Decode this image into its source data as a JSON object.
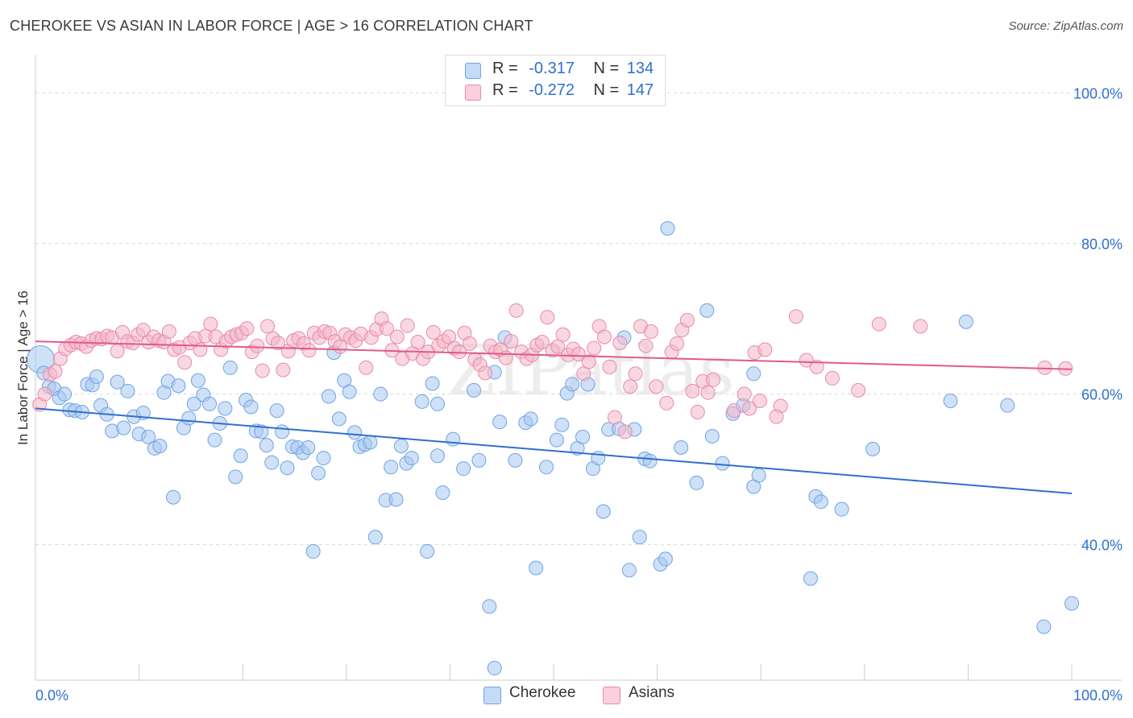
{
  "title": "CHEROKEE VS ASIAN IN LABOR FORCE | AGE > 16 CORRELATION CHART",
  "source": "Source: ZipAtlas.com",
  "legend": {
    "rows": [
      {
        "r_label": "R =",
        "r_value": "-0.317",
        "n_label": "N =",
        "n_value": "134",
        "color": "#a8c8f0"
      },
      {
        "r_label": "R =",
        "r_value": "-0.272",
        "n_label": "N =",
        "n_value": "147",
        "color": "#f4b6c8"
      }
    ]
  },
  "bottom_legend": [
    {
      "label": "Cherokee",
      "color": "#a8c8f0"
    },
    {
      "label": "Asians",
      "color": "#f4b6c8"
    }
  ],
  "watermark": "ZIPatlas",
  "chart_data": {
    "type": "scatter",
    "ylabel": "In Labor Force | Age > 16",
    "xlim": [
      0,
      100
    ],
    "ylim": [
      22,
      104
    ],
    "x_tick_labels": [
      {
        "value": 0,
        "label": "0.0%"
      },
      {
        "value": 100,
        "label": "100.0%"
      }
    ],
    "y_tick_labels": [
      {
        "value": 100,
        "label": "100.0%"
      },
      {
        "value": 80,
        "label": "80.0%"
      },
      {
        "value": 60,
        "label": "60.0%"
      },
      {
        "value": 40,
        "label": "40.0%"
      }
    ],
    "grid": "horizontal-dashed",
    "series": [
      {
        "name": "Cherokee",
        "color": "#6fa3e6",
        "fill": "#a8c8f0",
        "trend": {
          "x": [
            0,
            100
          ],
          "y": [
            58.1,
            46.8
          ],
          "color": "#2f6fd0"
        },
        "points": [
          [
            0.5,
            64.6
          ],
          [
            0.8,
            62.8
          ],
          [
            1.3,
            61.0
          ],
          [
            1.8,
            60.7
          ],
          [
            2.3,
            59.5
          ],
          [
            2.8,
            60.0
          ],
          [
            3.3,
            57.9
          ],
          [
            3.8,
            57.8
          ],
          [
            4.5,
            57.6
          ],
          [
            5.0,
            61.3
          ],
          [
            5.5,
            61.2
          ],
          [
            5.9,
            62.3
          ],
          [
            6.3,
            58.5
          ],
          [
            6.9,
            57.3
          ],
          [
            7.4,
            55.1
          ],
          [
            7.9,
            61.6
          ],
          [
            8.5,
            55.5
          ],
          [
            8.9,
            60.4
          ],
          [
            9.5,
            57.0
          ],
          [
            10.0,
            54.7
          ],
          [
            10.4,
            57.5
          ],
          [
            10.9,
            54.3
          ],
          [
            11.5,
            52.8
          ],
          [
            12.0,
            53.1
          ],
          [
            12.4,
            60.2
          ],
          [
            12.8,
            61.7
          ],
          [
            13.3,
            46.3
          ],
          [
            13.8,
            61.1
          ],
          [
            14.3,
            55.5
          ],
          [
            14.8,
            56.8
          ],
          [
            15.3,
            58.7
          ],
          [
            15.7,
            61.8
          ],
          [
            16.2,
            59.9
          ],
          [
            16.8,
            58.7
          ],
          [
            17.3,
            53.9
          ],
          [
            17.8,
            56.1
          ],
          [
            18.3,
            58.1
          ],
          [
            18.8,
            63.5
          ],
          [
            19.3,
            49.0
          ],
          [
            19.8,
            51.8
          ],
          [
            20.3,
            59.2
          ],
          [
            20.8,
            58.3
          ],
          [
            21.3,
            55.1
          ],
          [
            21.8,
            55.0
          ],
          [
            22.3,
            53.2
          ],
          [
            22.8,
            50.9
          ],
          [
            23.3,
            57.8
          ],
          [
            23.8,
            55.0
          ],
          [
            24.3,
            50.2
          ],
          [
            24.8,
            53.0
          ],
          [
            25.3,
            52.9
          ],
          [
            25.8,
            52.2
          ],
          [
            26.3,
            52.9
          ],
          [
            26.8,
            39.1
          ],
          [
            27.3,
            49.5
          ],
          [
            27.8,
            51.5
          ],
          [
            28.3,
            59.7
          ],
          [
            28.8,
            65.5
          ],
          [
            29.3,
            56.7
          ],
          [
            29.8,
            61.8
          ],
          [
            30.3,
            60.3
          ],
          [
            30.8,
            54.9
          ],
          [
            31.3,
            53.0
          ],
          [
            31.8,
            53.3
          ],
          [
            32.3,
            53.6
          ],
          [
            32.8,
            41.0
          ],
          [
            33.3,
            60.0
          ],
          [
            33.8,
            45.9
          ],
          [
            34.3,
            50.3
          ],
          [
            34.8,
            46.0
          ],
          [
            35.3,
            53.1
          ],
          [
            35.8,
            50.8
          ],
          [
            36.3,
            51.5
          ],
          [
            37.3,
            59.0
          ],
          [
            37.8,
            39.1
          ],
          [
            38.3,
            61.4
          ],
          [
            38.8,
            58.7
          ],
          [
            39.3,
            46.9
          ],
          [
            40.3,
            54.0
          ],
          [
            41.3,
            50.1
          ],
          [
            42.3,
            60.5
          ],
          [
            42.8,
            51.2
          ],
          [
            43.8,
            31.8
          ],
          [
            44.3,
            62.9
          ],
          [
            44.8,
            56.3
          ],
          [
            45.3,
            67.5
          ],
          [
            46.3,
            51.2
          ],
          [
            47.3,
            56.2
          ],
          [
            47.8,
            56.7
          ],
          [
            48.3,
            36.9
          ],
          [
            49.3,
            50.3
          ],
          [
            50.3,
            53.9
          ],
          [
            50.8,
            55.9
          ],
          [
            51.3,
            60.1
          ],
          [
            51.8,
            61.3
          ],
          [
            52.3,
            52.8
          ],
          [
            52.8,
            54.3
          ],
          [
            53.3,
            61.3
          ],
          [
            53.8,
            50.1
          ],
          [
            54.3,
            51.5
          ],
          [
            54.8,
            44.4
          ],
          [
            55.3,
            55.3
          ],
          [
            56.3,
            55.4
          ],
          [
            56.8,
            67.5
          ],
          [
            57.3,
            36.6
          ],
          [
            57.8,
            55.3
          ],
          [
            58.3,
            41.0
          ],
          [
            58.8,
            51.4
          ],
          [
            59.3,
            51.1
          ],
          [
            60.3,
            37.4
          ],
          [
            60.8,
            38.1
          ],
          [
            61.0,
            82.0
          ],
          [
            62.3,
            52.9
          ],
          [
            63.8,
            48.2
          ],
          [
            64.8,
            71.1
          ],
          [
            65.3,
            54.4
          ],
          [
            66.3,
            50.8
          ],
          [
            67.3,
            57.4
          ],
          [
            68.3,
            58.5
          ],
          [
            69.3,
            62.7
          ],
          [
            69.3,
            47.7
          ],
          [
            69.8,
            49.2
          ],
          [
            74.8,
            35.5
          ],
          [
            75.3,
            46.4
          ],
          [
            75.8,
            45.7
          ],
          [
            77.8,
            44.7
          ],
          [
            80.8,
            52.7
          ],
          [
            88.3,
            59.1
          ],
          [
            89.8,
            69.6
          ],
          [
            93.8,
            58.5
          ],
          [
            97.3,
            29.1
          ],
          [
            100,
            32.2
          ],
          [
            44.3,
            23.6
          ],
          [
            38.8,
            51.8
          ]
        ]
      },
      {
        "name": "Asians",
        "color": "#e98aa8",
        "fill": "#f4b6c8",
        "trend": {
          "x": [
            0,
            100
          ],
          "y": [
            67.0,
            63.3
          ],
          "color": "#e05a8a"
        },
        "points": [
          [
            0.4,
            58.6
          ],
          [
            0.9,
            60.0
          ],
          [
            1.4,
            62.6
          ],
          [
            1.9,
            63.0
          ],
          [
            2.4,
            64.7
          ],
          [
            2.9,
            66.0
          ],
          [
            3.4,
            66.5
          ],
          [
            3.9,
            66.9
          ],
          [
            4.4,
            66.7
          ],
          [
            4.9,
            66.3
          ],
          [
            5.4,
            67.1
          ],
          [
            5.9,
            67.4
          ],
          [
            6.4,
            67.3
          ],
          [
            6.9,
            67.7
          ],
          [
            7.4,
            67.5
          ],
          [
            7.9,
            65.7
          ],
          [
            8.4,
            68.2
          ],
          [
            8.9,
            67.0
          ],
          [
            9.4,
            66.8
          ],
          [
            9.9,
            67.9
          ],
          [
            10.4,
            68.5
          ],
          [
            10.9,
            66.9
          ],
          [
            11.4,
            67.6
          ],
          [
            11.9,
            67.1
          ],
          [
            12.4,
            66.9
          ],
          [
            12.9,
            68.3
          ],
          [
            13.4,
            65.9
          ],
          [
            13.9,
            66.2
          ],
          [
            14.4,
            64.2
          ],
          [
            14.9,
            66.8
          ],
          [
            15.4,
            67.4
          ],
          [
            15.9,
            65.9
          ],
          [
            16.4,
            67.7
          ],
          [
            16.9,
            69.3
          ],
          [
            17.4,
            67.6
          ],
          [
            17.9,
            65.9
          ],
          [
            18.4,
            67.0
          ],
          [
            18.9,
            67.6
          ],
          [
            19.4,
            67.9
          ],
          [
            19.9,
            68.1
          ],
          [
            20.4,
            68.7
          ],
          [
            20.9,
            65.6
          ],
          [
            21.4,
            66.4
          ],
          [
            21.9,
            63.1
          ],
          [
            22.4,
            69.0
          ],
          [
            22.9,
            67.4
          ],
          [
            23.4,
            66.8
          ],
          [
            23.9,
            63.2
          ],
          [
            24.4,
            65.7
          ],
          [
            24.9,
            67.1
          ],
          [
            25.4,
            67.4
          ],
          [
            25.9,
            66.7
          ],
          [
            26.4,
            65.8
          ],
          [
            26.9,
            68.1
          ],
          [
            27.4,
            67.5
          ],
          [
            27.9,
            68.3
          ],
          [
            28.4,
            68.1
          ],
          [
            28.9,
            67.0
          ],
          [
            29.4,
            66.3
          ],
          [
            29.9,
            67.9
          ],
          [
            30.4,
            67.5
          ],
          [
            30.9,
            67.1
          ],
          [
            31.4,
            68.0
          ],
          [
            31.9,
            63.5
          ],
          [
            32.4,
            67.5
          ],
          [
            32.9,
            68.6
          ],
          [
            33.4,
            70.0
          ],
          [
            33.9,
            68.7
          ],
          [
            34.4,
            65.8
          ],
          [
            34.9,
            67.6
          ],
          [
            35.4,
            64.7
          ],
          [
            35.9,
            69.1
          ],
          [
            36.4,
            65.4
          ],
          [
            36.9,
            66.9
          ],
          [
            37.4,
            64.7
          ],
          [
            37.9,
            65.6
          ],
          [
            38.4,
            68.2
          ],
          [
            38.9,
            66.4
          ],
          [
            39.4,
            67.0
          ],
          [
            39.9,
            67.6
          ],
          [
            40.4,
            66.1
          ],
          [
            40.9,
            65.6
          ],
          [
            41.4,
            68.1
          ],
          [
            41.9,
            66.7
          ],
          [
            42.4,
            64.6
          ],
          [
            42.9,
            63.9
          ],
          [
            43.4,
            62.8
          ],
          [
            43.9,
            66.4
          ],
          [
            44.4,
            65.6
          ],
          [
            44.9,
            65.9
          ],
          [
            45.4,
            64.8
          ],
          [
            45.9,
            67.0
          ],
          [
            46.4,
            71.1
          ],
          [
            46.9,
            65.6
          ],
          [
            47.4,
            64.7
          ],
          [
            47.9,
            65.2
          ],
          [
            48.4,
            66.5
          ],
          [
            48.9,
            66.9
          ],
          [
            49.4,
            70.2
          ],
          [
            49.9,
            65.8
          ],
          [
            50.4,
            66.3
          ],
          [
            50.9,
            67.9
          ],
          [
            51.4,
            65.2
          ],
          [
            51.9,
            66.0
          ],
          [
            52.4,
            65.3
          ],
          [
            52.9,
            62.7
          ],
          [
            53.4,
            64.3
          ],
          [
            53.9,
            66.1
          ],
          [
            54.4,
            69.0
          ],
          [
            54.9,
            67.6
          ],
          [
            55.4,
            63.6
          ],
          [
            55.9,
            56.9
          ],
          [
            56.4,
            66.8
          ],
          [
            56.9,
            55.0
          ],
          [
            57.4,
            61.0
          ],
          [
            57.9,
            62.7
          ],
          [
            58.4,
            69.0
          ],
          [
            58.9,
            66.4
          ],
          [
            59.4,
            68.3
          ],
          [
            59.9,
            61.0
          ],
          [
            60.9,
            58.8
          ],
          [
            61.4,
            65.6
          ],
          [
            61.9,
            66.7
          ],
          [
            62.4,
            68.5
          ],
          [
            62.9,
            69.8
          ],
          [
            63.4,
            60.4
          ],
          [
            63.9,
            57.6
          ],
          [
            64.4,
            61.7
          ],
          [
            64.9,
            60.2
          ],
          [
            65.4,
            61.9
          ],
          [
            67.4,
            57.8
          ],
          [
            68.4,
            60.0
          ],
          [
            68.9,
            58.1
          ],
          [
            69.4,
            65.5
          ],
          [
            69.9,
            59.1
          ],
          [
            70.4,
            65.9
          ],
          [
            71.9,
            58.4
          ],
          [
            73.4,
            70.3
          ],
          [
            74.4,
            64.5
          ],
          [
            75.4,
            63.6
          ],
          [
            79.4,
            60.5
          ],
          [
            81.4,
            69.3
          ],
          [
            85.4,
            69.0
          ],
          [
            97.4,
            63.5
          ],
          [
            99.4,
            63.4
          ],
          [
            71.5,
            57.0
          ],
          [
            76.9,
            62.1
          ]
        ]
      }
    ]
  }
}
